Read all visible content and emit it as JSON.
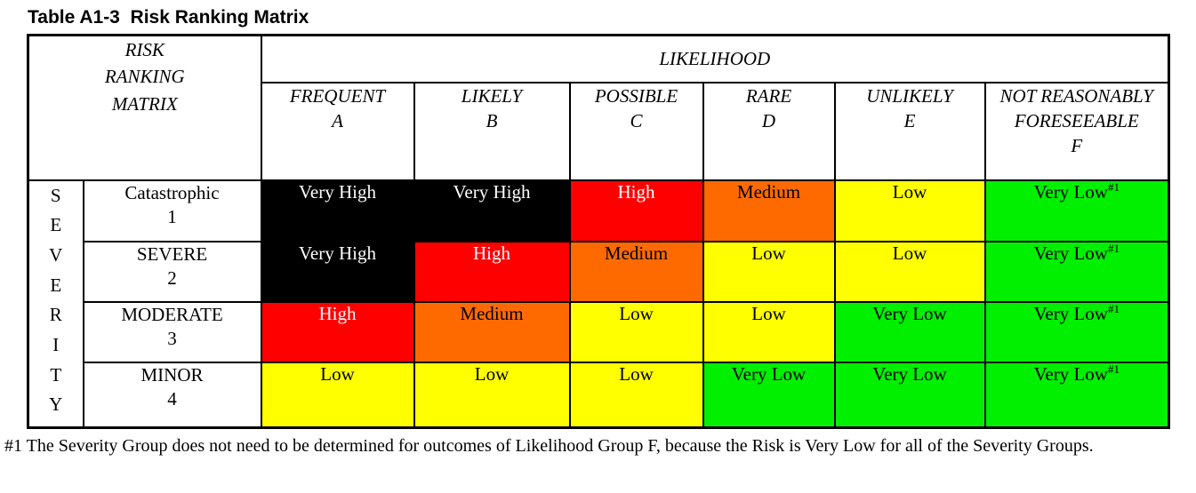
{
  "title": "Table A1-3  Risk Ranking Matrix",
  "colors": {
    "very_high_bg": "#000000",
    "very_high_text": "#ffffff",
    "high_bg": "#ff0000",
    "high_text": "#ffffff",
    "medium_bg": "#ff6a00",
    "medium_text": "#000000",
    "low_bg": "#ffff00",
    "low_text": "#000000",
    "very_low_bg": "#00f000",
    "very_low_text": "#000000"
  },
  "table": {
    "corner_label": "RISK\nRANKING\nMATRIX",
    "likelihood_header": "LIKELIHOOD",
    "likelihood_columns": [
      {
        "name": "FREQUENT",
        "letter": "A"
      },
      {
        "name": "LIKELY",
        "letter": "B"
      },
      {
        "name": "POSSIBLE",
        "letter": "C"
      },
      {
        "name": "RARE",
        "letter": "D"
      },
      {
        "name": "UNLIKELY",
        "letter": "E"
      },
      {
        "name": "NOT REASONABLY FORESEEABLE",
        "letter": "F"
      }
    ],
    "severity_label": "SEVERITY",
    "rows": [
      {
        "name": "Catastrophic",
        "number": "1",
        "cells": [
          {
            "text": "Very High",
            "level": "very-high"
          },
          {
            "text": "Very High",
            "level": "very-high"
          },
          {
            "text": "High",
            "level": "high"
          },
          {
            "text": "Medium",
            "level": "medium"
          },
          {
            "text": "Low",
            "level": "low"
          },
          {
            "text": "Very Low",
            "sup": "#1",
            "level": "very-low"
          }
        ]
      },
      {
        "name": "SEVERE",
        "number": "2",
        "cells": [
          {
            "text": "Very High",
            "level": "very-high"
          },
          {
            "text": "High",
            "level": "high"
          },
          {
            "text": "Medium",
            "level": "medium"
          },
          {
            "text": "Low",
            "level": "low"
          },
          {
            "text": "Low",
            "level": "low"
          },
          {
            "text": "Very Low",
            "sup": "#1",
            "level": "very-low"
          }
        ]
      },
      {
        "name": "MODERATE",
        "number": "3",
        "cells": [
          {
            "text": "High",
            "level": "high"
          },
          {
            "text": "Medium",
            "level": "medium"
          },
          {
            "text": "Low",
            "level": "low"
          },
          {
            "text": "Low",
            "level": "low"
          },
          {
            "text": "Very Low",
            "level": "very-low"
          },
          {
            "text": "Very Low",
            "sup": "#1",
            "level": "very-low"
          }
        ]
      },
      {
        "name": "MINOR",
        "number": "4",
        "cells": [
          {
            "text": "Low",
            "level": "low"
          },
          {
            "text": "Low",
            "level": "low"
          },
          {
            "text": "Low",
            "level": "low"
          },
          {
            "text": "Very Low",
            "level": "very-low"
          },
          {
            "text": "Very Low",
            "level": "very-low"
          },
          {
            "text": "Very Low",
            "sup": "#1",
            "level": "very-low"
          }
        ]
      }
    ]
  },
  "footnote": "#1 The Severity Group does not need to be determined for outcomes of Likelihood Group F, because the Risk is Very Low for all of the Severity Groups."
}
